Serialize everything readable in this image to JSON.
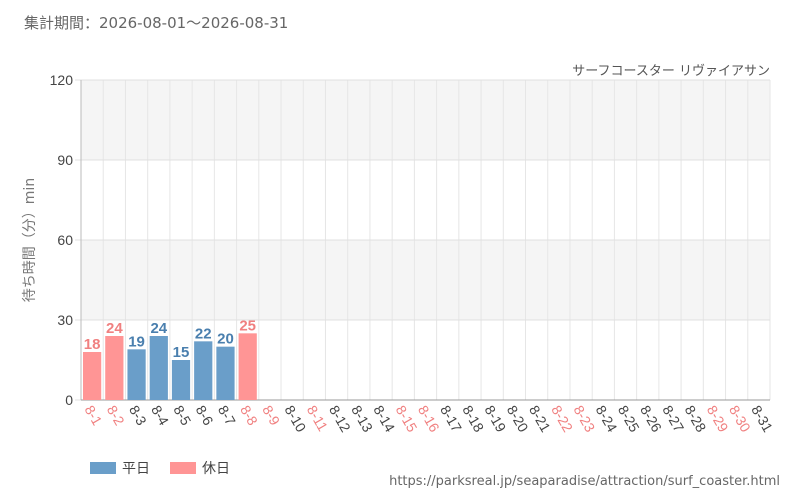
{
  "period_label": "集計期間：2026-08-01～2026-08-31",
  "source_url": "https://parksreal.jp/seaparadise/attraction/surf_coaster.html",
  "colors": {
    "weekday": "#6a9ec9",
    "holiday": "#ff9595",
    "weekday_text": "#4a7fae",
    "holiday_text": "#f08080"
  },
  "legend": [
    {
      "label": "平日",
      "kind": "weekday"
    },
    {
      "label": "休日",
      "kind": "holiday"
    }
  ],
  "chart_data": {
    "type": "bar",
    "title": "サーフコースター リヴァイアサン",
    "ylabel": "待ち時間（分）min",
    "xlabel": "",
    "ylim": [
      0,
      120
    ],
    "yticks": [
      "0",
      "30",
      "60",
      "90",
      "120"
    ],
    "grid": true,
    "legend_position": "bottom-left",
    "categories": [
      "8-1",
      "8-2",
      "8-3",
      "8-4",
      "8-5",
      "8-6",
      "8-7",
      "8-8",
      "8-9",
      "8-10",
      "8-11",
      "8-12",
      "8-13",
      "8-14",
      "8-15",
      "8-16",
      "8-17",
      "8-18",
      "8-19",
      "8-20",
      "8-21",
      "8-22",
      "8-23",
      "8-24",
      "8-25",
      "8-26",
      "8-27",
      "8-28",
      "8-29",
      "8-30",
      "8-31"
    ],
    "day_kind": [
      "holiday",
      "holiday",
      "weekday",
      "weekday",
      "weekday",
      "weekday",
      "weekday",
      "holiday",
      "holiday",
      "weekday",
      "holiday",
      "weekday",
      "weekday",
      "weekday",
      "holiday",
      "holiday",
      "weekday",
      "weekday",
      "weekday",
      "weekday",
      "weekday",
      "holiday",
      "holiday",
      "weekday",
      "weekday",
      "weekday",
      "weekday",
      "weekday",
      "holiday",
      "holiday",
      "weekday"
    ],
    "values": [
      18,
      24,
      19,
      24,
      15,
      22,
      20,
      25,
      null,
      null,
      null,
      null,
      null,
      null,
      null,
      null,
      null,
      null,
      null,
      null,
      null,
      null,
      null,
      null,
      null,
      null,
      null,
      null,
      null,
      null,
      null
    ]
  }
}
